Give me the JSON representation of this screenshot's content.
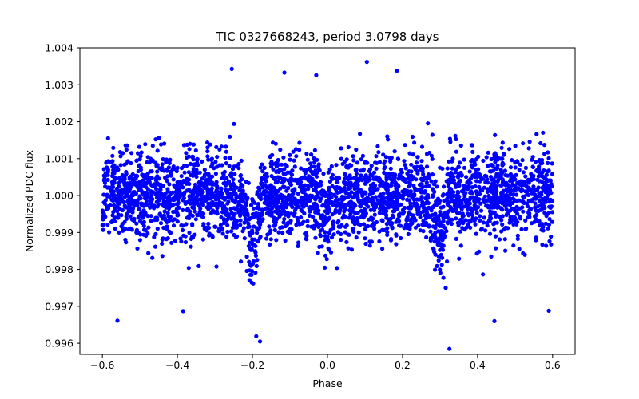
{
  "chart_data": {
    "type": "scatter",
    "title": "TIC 0327668243, period 3.0798 days",
    "xlabel": "Phase",
    "ylabel": "Normalized PDC flux",
    "xlim": [
      -0.66,
      0.66
    ],
    "ylim": [
      0.9957,
      1.004
    ],
    "x_ticks": [
      -0.6,
      -0.4,
      -0.2,
      0.0,
      0.2,
      0.4,
      0.6
    ],
    "x_tick_labels": [
      "−0.6",
      "−0.4",
      "−0.2",
      "0.0",
      "0.2",
      "0.4",
      "0.6"
    ],
    "y_ticks": [
      0.996,
      0.997,
      0.998,
      0.999,
      1.0,
      1.001,
      1.002,
      1.003,
      1.004
    ],
    "y_tick_labels": [
      "0.996",
      "0.997",
      "0.998",
      "0.999",
      "1.000",
      "1.001",
      "1.002",
      "1.003",
      "1.004"
    ],
    "grid": false,
    "marker_color": "#0000ff",
    "series": [
      {
        "x_range": [
          -0.6,
          0.6
        ],
        "flux_center": 1.0,
        "flux_scatter_sigma": 0.0006,
        "dips": [
          {
            "phase": -0.2,
            "depth": 0.0012
          },
          {
            "phase": 0.0,
            "depth": 0.0006
          },
          {
            "phase": 0.3,
            "depth": 0.0011
          }
        ],
        "notable_points": [
          {
            "x": -0.255,
            "y": 1.00343
          },
          {
            "x": -0.115,
            "y": 1.00333
          },
          {
            "x": -0.03,
            "y": 1.00326
          },
          {
            "x": 0.105,
            "y": 1.00362
          },
          {
            "x": 0.185,
            "y": 1.00338
          },
          {
            "x": -0.56,
            "y": 0.99661
          },
          {
            "x": -0.385,
            "y": 0.99687
          },
          {
            "x": -0.19,
            "y": 0.99619
          },
          {
            "x": -0.18,
            "y": 0.99605
          },
          {
            "x": 0.325,
            "y": 0.99585
          },
          {
            "x": 0.445,
            "y": 0.9966
          },
          {
            "x": 0.59,
            "y": 0.99688
          }
        ]
      }
    ]
  }
}
